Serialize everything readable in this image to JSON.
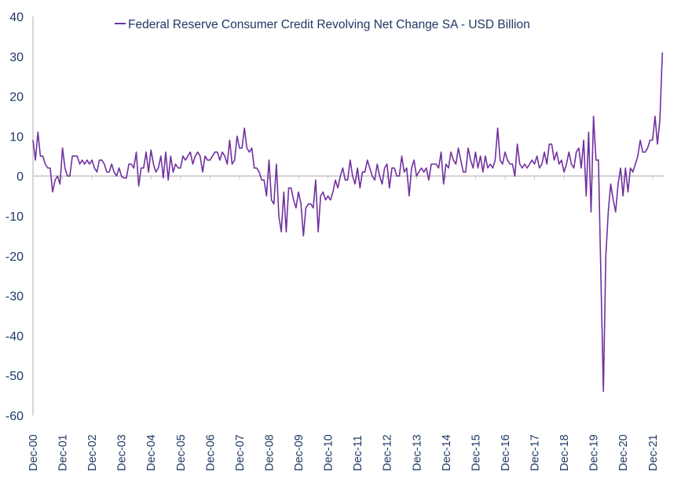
{
  "chart_data": {
    "type": "line",
    "title": "",
    "legend": {
      "position": "top",
      "entries": [
        "Federal Reserve Consumer Credit Revolving Net Change SA - USD Billion"
      ]
    },
    "xlabel": "",
    "ylabel": "",
    "ylim": [
      -60,
      40
    ],
    "yticks": [
      40,
      30,
      20,
      10,
      0,
      -10,
      -20,
      -30,
      -40,
      -50,
      -60
    ],
    "xtick_labels": [
      "Dec-00",
      "Dec-01",
      "Dec-02",
      "Dec-03",
      "Dec-04",
      "Dec-05",
      "Dec-06",
      "Dec-07",
      "Dec-08",
      "Dec-09",
      "Dec-10",
      "Dec-11",
      "Dec-12",
      "Dec-13",
      "Dec-14",
      "Dec-15",
      "Dec-16",
      "Dec-17",
      "Dec-18",
      "Dec-19",
      "Dec-20",
      "Dec-21"
    ],
    "x_start": "Dec-00",
    "x_frequency": "monthly",
    "colors": {
      "series": "#7030A0",
      "text": "#1F3864",
      "axis": "#BFBFBF"
    },
    "series": [
      {
        "name": "Federal Reserve Consumer Credit Revolving Net Change SA - USD Billion",
        "values": [
          9,
          4,
          11,
          5,
          5,
          3,
          2,
          2,
          -4,
          -1,
          0,
          -2,
          7,
          2,
          0,
          0,
          5,
          5,
          5,
          3,
          4,
          3,
          4,
          3,
          4,
          2,
          1,
          4,
          4,
          3,
          1,
          1,
          3,
          1,
          0,
          2,
          0,
          -0.5,
          -0.5,
          3,
          3,
          2,
          6,
          -2.5,
          2,
          2,
          6,
          1,
          6.5,
          3,
          1,
          2,
          5,
          -0.5,
          6,
          -1,
          5,
          1,
          3,
          2,
          2,
          5,
          4,
          5,
          6,
          3,
          5,
          6,
          5,
          1,
          5,
          4,
          4,
          5,
          6,
          6,
          4,
          6,
          5,
          3,
          9,
          3,
          4,
          10,
          7,
          7,
          12,
          7,
          6,
          7,
          2,
          2,
          1,
          -1,
          -1,
          -5,
          4,
          -6,
          -7,
          3,
          -10,
          -14,
          -4,
          -14,
          -3,
          -3,
          -6,
          -8,
          -4,
          -7,
          -15,
          -8,
          -7,
          -7,
          -8,
          -1,
          -14,
          -5,
          -4,
          -6,
          -5,
          -6,
          -4,
          -1,
          -3,
          0,
          2,
          -1,
          -1,
          4,
          0,
          -2,
          2,
          -3,
          1,
          1,
          4,
          2,
          0,
          -1,
          3,
          0,
          -2,
          2,
          3,
          -3,
          2,
          2,
          0,
          0,
          5,
          1,
          2,
          -5,
          2,
          4,
          0,
          1,
          2,
          1,
          2,
          -1,
          3,
          3,
          3,
          2,
          6,
          -2,
          3,
          2,
          6,
          4,
          3,
          7,
          4,
          1,
          1,
          7,
          4,
          2,
          6,
          2,
          5,
          1,
          5,
          2,
          3,
          2,
          4,
          12,
          4,
          3,
          6,
          4,
          3,
          3,
          0,
          8,
          3,
          2,
          3,
          2,
          3,
          4,
          3,
          5,
          2,
          3,
          6,
          3,
          8,
          8,
          4,
          6,
          3,
          4,
          1,
          3,
          6,
          3,
          2,
          6,
          7,
          2,
          9,
          -5,
          11,
          -9,
          15,
          4,
          4,
          -25,
          -54,
          -20,
          -9,
          -2,
          -6,
          -9,
          -2,
          2,
          -5,
          2,
          -4,
          2,
          1,
          3,
          5,
          9,
          6,
          6,
          7,
          9,
          9,
          15,
          8,
          14,
          31
        ]
      }
    ]
  }
}
